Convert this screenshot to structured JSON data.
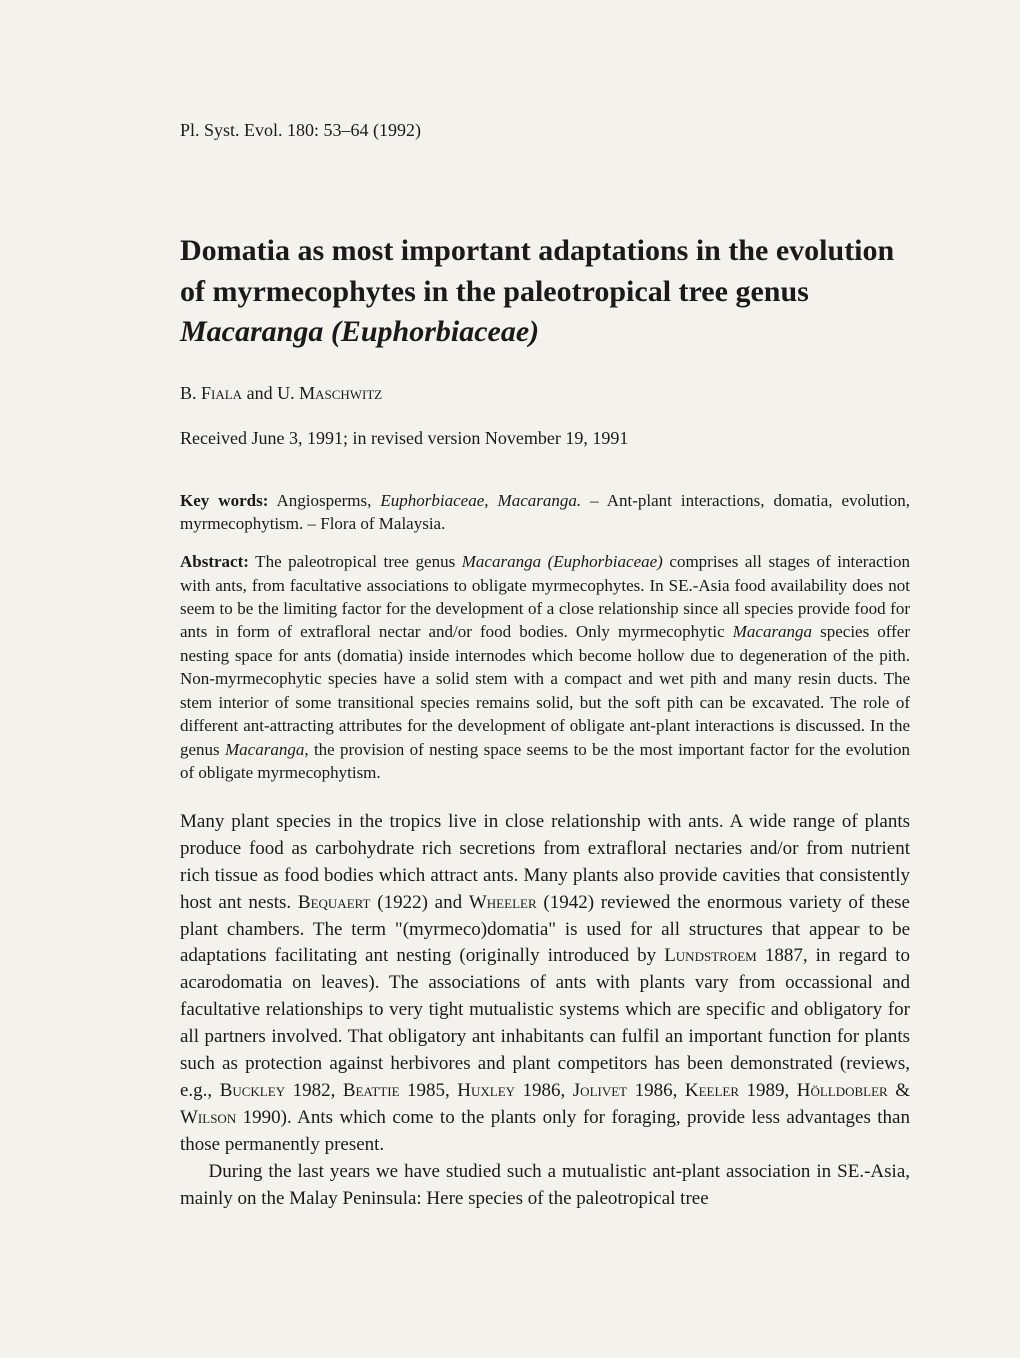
{
  "journal_line": "Pl. Syst. Evol. 180: 53–64 (1992)",
  "title_part1": "Domatia as most important adaptations in the evolution of myrmecophytes in the paleotropical tree genus ",
  "title_italic": "Macaranga (Euphorbiaceae)",
  "authors_prefix": "B. ",
  "authors_name1": "Fiala",
  "authors_mid": " and U. ",
  "authors_name2": "Maschwitz",
  "received": "Received June 3, 1991; in revised version November 19, 1991",
  "keywords_label": "Key words:",
  "keywords_text1": " Angiosperms, ",
  "keywords_italic1": "Euphorbiaceae, Macaranga.",
  "keywords_text2": " – Ant-plant interactions, domatia, evolution, myrmecophytism. – Flora of Malaysia.",
  "abstract_label": "Abstract:",
  "abstract_text1": " The paleotropical tree genus ",
  "abstract_italic1": "Macaranga (Euphorbiaceae)",
  "abstract_text2": " comprises all stages of interaction with ants, from facultative associations to obligate myrmecophytes. In SE.-Asia food availability does not seem to be the limiting factor for the development of a close relationship since all species provide food for ants in form of extrafloral nectar and/or food bodies. Only myrmecophytic ",
  "abstract_italic2": "Macaranga",
  "abstract_text3": " species offer nesting space for ants (domatia) inside internodes which become hollow due to degeneration of the pith. Non-myrmecophytic species have a solid stem with a compact and wet pith and many resin ducts. The stem interior of some transitional species remains solid, but the soft pith can be excavated. The role of different ant-attracting attributes for the development of obligate ant-plant interactions is discussed. In the genus ",
  "abstract_italic3": "Macaranga",
  "abstract_text4": ", the provision of nesting space seems to be the most important factor for the evolution of obligate myrmecophytism.",
  "para1_a": "Many plant species in the tropics live in close relationship with ants. A wide range of plants produce food as carbohydrate rich secretions from extrafloral nectaries and/or from nutrient rich tissue as food bodies which attract ants. Many plants also provide cavities that consistently host ant nests. ",
  "para1_sc1": "Bequaert",
  "para1_b": " (1922) and ",
  "para1_sc2": "Wheeler",
  "para1_c": " (1942) reviewed the enormous variety of these plant chambers. The term \"(myrmeco)domatia\" is used for all structures that appear to be adaptations facilitating ant nesting (originally introduced by ",
  "para1_sc3": "Lundstroem",
  "para1_d": " 1887, in regard to acarodomatia on leaves). The associations of ants with plants vary from occassional and facultative relationships to very tight mutualistic systems which are specific and obligatory for all partners involved. That obligatory ant inhabitants can fulfil an important function for plants such as protection against herbivores and plant competitors has been demonstrated (reviews, e.g., ",
  "para1_sc4": "Buckley",
  "para1_e": " 1982, ",
  "para1_sc5": "Beattie",
  "para1_f": " 1985, ",
  "para1_sc6": "Huxley",
  "para1_g": " 1986, ",
  "para1_sc7": "Jolivet",
  "para1_h": " 1986, ",
  "para1_sc8": "Keeler",
  "para1_i": " 1989, ",
  "para1_sc9": "Hölldobler & Wilson",
  "para1_j": " 1990). Ants which come to the plants only for foraging, provide less advantages than those permanently present.",
  "para2": "During the last years we have studied such a mutualistic ant-plant association in SE.-Asia, mainly on the Malay Peninsula: Here species of the paleotropical tree"
}
